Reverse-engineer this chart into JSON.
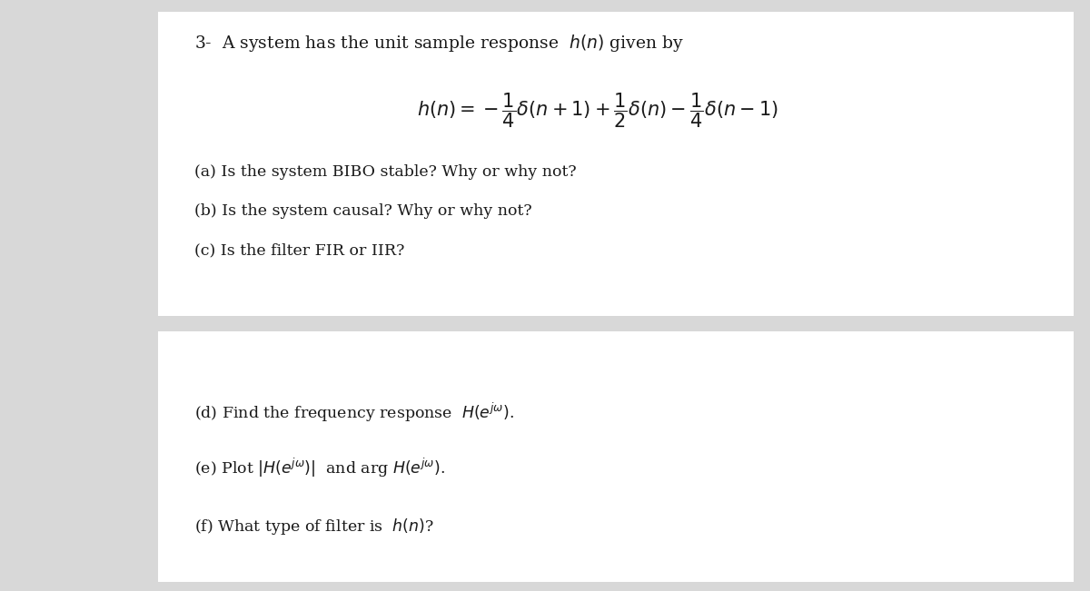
{
  "bg_color": "#d8d8d8",
  "panel1_color": "#ffffff",
  "panel2_color": "#ffffff",
  "text_color": "#1a1a1a",
  "title_line": "3-  A system has the unit sample response  $h(n)$ given by",
  "equation": "$h(n)=-\\dfrac{1}{4}\\delta(n+1)+\\dfrac{1}{2}\\delta(n)-\\dfrac{1}{4}\\delta(n-1)$",
  "part_a": "(a) Is the system BIBO stable? Why or why not?",
  "part_b": "(b) Is the system causal? Why or why not?",
  "part_c": "(c) Is the filter FIR or IIR?",
  "part_d": "(d) Find the frequency response  $H(e^{j\\omega})$.",
  "part_e": "(e) Plot $|H(e^{j\\omega})|$  and arg $H(e^{j\\omega})$.",
  "part_f": "(f) What type of filter is  $h(n)$?",
  "fontsize_title": 13.5,
  "fontsize_eq": 15,
  "fontsize_body": 12.5
}
